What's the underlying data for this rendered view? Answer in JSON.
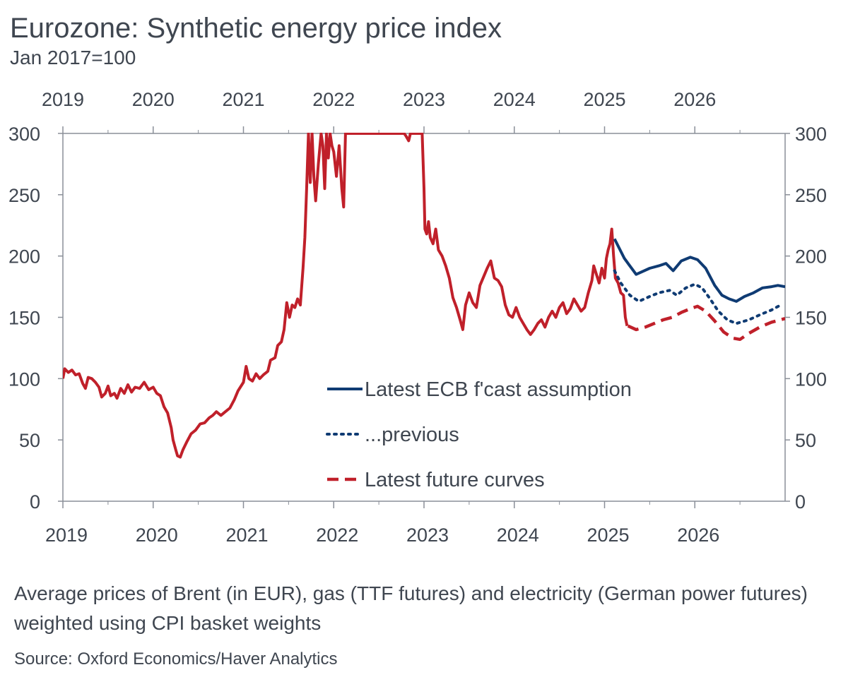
{
  "chart_data": {
    "type": "line",
    "title": "Eurozone: Synthetic energy price index",
    "subtitle": "Jan 2017=100",
    "x_tick_labels": [
      "2019",
      "2020",
      "2021",
      "2022",
      "2023",
      "2024",
      "2025",
      "2026"
    ],
    "x_range": [
      2019.0,
      2027.0
    ],
    "ylim": [
      0,
      300
    ],
    "y_ticks": [
      0,
      50,
      100,
      150,
      200,
      250,
      300
    ],
    "y_tick_labels": [
      "0",
      "50",
      "100",
      "150",
      "200",
      "250",
      "300"
    ],
    "legend": {
      "placement": "center-right",
      "entries": [
        "Latest ECB f'cast assumption",
        "...previous",
        "Latest future curves"
      ]
    },
    "colors": {
      "history": "#c0202a",
      "ecb_latest": "#0f3b73",
      "ecb_previous": "#0f3b73",
      "futures": "#c0202a",
      "axis": "#8a8f98"
    },
    "series": [
      {
        "name": "history",
        "style": "solid",
        "points": [
          [
            2019.0,
            100
          ],
          [
            2019.02,
            108
          ],
          [
            2019.06,
            105
          ],
          [
            2019.1,
            107
          ],
          [
            2019.14,
            103
          ],
          [
            2019.18,
            104
          ],
          [
            2019.22,
            96
          ],
          [
            2019.25,
            92
          ],
          [
            2019.28,
            101
          ],
          [
            2019.32,
            100
          ],
          [
            2019.36,
            97
          ],
          [
            2019.4,
            93
          ],
          [
            2019.43,
            85
          ],
          [
            2019.47,
            88
          ],
          [
            2019.5,
            94
          ],
          [
            2019.53,
            86
          ],
          [
            2019.57,
            88
          ],
          [
            2019.6,
            84
          ],
          [
            2019.64,
            92
          ],
          [
            2019.68,
            88
          ],
          [
            2019.72,
            95
          ],
          [
            2019.76,
            89
          ],
          [
            2019.8,
            93
          ],
          [
            2019.85,
            92
          ],
          [
            2019.9,
            97
          ],
          [
            2019.95,
            91
          ],
          [
            2020.0,
            93
          ],
          [
            2020.04,
            88
          ],
          [
            2020.08,
            86
          ],
          [
            2020.12,
            77
          ],
          [
            2020.16,
            72
          ],
          [
            2020.2,
            60
          ],
          [
            2020.22,
            50
          ],
          [
            2020.25,
            42
          ],
          [
            2020.27,
            37
          ],
          [
            2020.3,
            36
          ],
          [
            2020.33,
            42
          ],
          [
            2020.37,
            48
          ],
          [
            2020.42,
            55
          ],
          [
            2020.47,
            58
          ],
          [
            2020.52,
            63
          ],
          [
            2020.57,
            64
          ],
          [
            2020.62,
            68
          ],
          [
            2020.66,
            70
          ],
          [
            2020.7,
            73
          ],
          [
            2020.75,
            70
          ],
          [
            2020.8,
            73
          ],
          [
            2020.85,
            76
          ],
          [
            2020.9,
            83
          ],
          [
            2020.94,
            90
          ],
          [
            2021.0,
            97
          ],
          [
            2021.03,
            110
          ],
          [
            2021.06,
            100
          ],
          [
            2021.1,
            98
          ],
          [
            2021.14,
            104
          ],
          [
            2021.18,
            100
          ],
          [
            2021.22,
            103
          ],
          [
            2021.27,
            106
          ],
          [
            2021.3,
            115
          ],
          [
            2021.35,
            117
          ],
          [
            2021.38,
            127
          ],
          [
            2021.42,
            130
          ],
          [
            2021.45,
            140
          ],
          [
            2021.48,
            162
          ],
          [
            2021.51,
            150
          ],
          [
            2021.54,
            160
          ],
          [
            2021.57,
            158
          ],
          [
            2021.6,
            165
          ],
          [
            2021.63,
            160
          ],
          [
            2021.66,
            190
          ],
          [
            2021.68,
            215
          ],
          [
            2021.7,
            255
          ],
          [
            2021.72,
            300
          ],
          [
            2021.74,
            260
          ],
          [
            2021.76,
            300
          ],
          [
            2021.78,
            265
          ],
          [
            2021.8,
            245
          ],
          [
            2021.83,
            275
          ],
          [
            2021.86,
            300
          ],
          [
            2021.88,
            290
          ],
          [
            2021.9,
            255
          ],
          [
            2021.92,
            300
          ],
          [
            2021.94,
            280
          ],
          [
            2021.96,
            300
          ],
          [
            2021.98,
            290
          ],
          [
            2022.0,
            285
          ],
          [
            2022.03,
            265
          ],
          [
            2022.06,
            290
          ],
          [
            2022.09,
            255
          ],
          [
            2022.11,
            240
          ],
          [
            2022.13,
            300
          ],
          [
            2022.15,
            300
          ],
          [
            2022.78,
            300
          ],
          [
            2022.8,
            298
          ],
          [
            2022.83,
            294
          ],
          [
            2022.85,
            300
          ],
          [
            2022.88,
            300
          ],
          [
            2022.9,
            300
          ],
          [
            2022.93,
            300
          ],
          [
            2022.96,
            300
          ],
          [
            2022.98,
            300
          ],
          [
            2023.0,
            255
          ],
          [
            2023.01,
            222
          ],
          [
            2023.03,
            218
          ],
          [
            2023.05,
            228
          ],
          [
            2023.07,
            215
          ],
          [
            2023.1,
            210
          ],
          [
            2023.13,
            222
          ],
          [
            2023.16,
            205
          ],
          [
            2023.2,
            200
          ],
          [
            2023.24,
            192
          ],
          [
            2023.28,
            182
          ],
          [
            2023.32,
            166
          ],
          [
            2023.36,
            158
          ],
          [
            2023.4,
            148
          ],
          [
            2023.43,
            140
          ],
          [
            2023.46,
            160
          ],
          [
            2023.5,
            170
          ],
          [
            2023.54,
            162
          ],
          [
            2023.58,
            158
          ],
          [
            2023.62,
            176
          ],
          [
            2023.66,
            183
          ],
          [
            2023.7,
            190
          ],
          [
            2023.74,
            196
          ],
          [
            2023.78,
            182
          ],
          [
            2023.82,
            180
          ],
          [
            2023.86,
            175
          ],
          [
            2023.9,
            160
          ],
          [
            2023.94,
            152
          ],
          [
            2023.98,
            150
          ],
          [
            2024.02,
            158
          ],
          [
            2024.06,
            150
          ],
          [
            2024.1,
            145
          ],
          [
            2024.14,
            140
          ],
          [
            2024.18,
            136
          ],
          [
            2024.22,
            140
          ],
          [
            2024.26,
            145
          ],
          [
            2024.3,
            148
          ],
          [
            2024.34,
            142
          ],
          [
            2024.38,
            150
          ],
          [
            2024.42,
            155
          ],
          [
            2024.46,
            150
          ],
          [
            2024.5,
            158
          ],
          [
            2024.54,
            162
          ],
          [
            2024.58,
            153
          ],
          [
            2024.62,
            157
          ],
          [
            2024.66,
            165
          ],
          [
            2024.7,
            160
          ],
          [
            2024.74,
            155
          ],
          [
            2024.78,
            158
          ],
          [
            2024.82,
            170
          ],
          [
            2024.86,
            180
          ],
          [
            2024.88,
            192
          ],
          [
            2024.91,
            185
          ],
          [
            2024.94,
            178
          ],
          [
            2024.97,
            190
          ],
          [
            2025.0,
            182
          ],
          [
            2025.02,
            198
          ],
          [
            2025.04,
            205
          ],
          [
            2025.06,
            210
          ],
          [
            2025.08,
            222
          ],
          [
            2025.1,
            200
          ],
          [
            2025.12,
            182
          ],
          [
            2025.15,
            178
          ],
          [
            2025.18,
            170
          ],
          [
            2025.21,
            168
          ],
          [
            2025.23,
            150
          ],
          [
            2025.25,
            143
          ]
        ]
      },
      {
        "name": "Latest ECB f'cast assumption",
        "style": "solid",
        "points": [
          [
            2025.11,
            214
          ],
          [
            2025.22,
            198
          ],
          [
            2025.35,
            185
          ],
          [
            2025.5,
            190
          ],
          [
            2025.6,
            192
          ],
          [
            2025.68,
            194
          ],
          [
            2025.76,
            188
          ],
          [
            2025.85,
            196
          ],
          [
            2025.95,
            199
          ],
          [
            2026.03,
            197
          ],
          [
            2026.12,
            190
          ],
          [
            2026.22,
            176
          ],
          [
            2026.3,
            168
          ],
          [
            2026.38,
            165
          ],
          [
            2026.46,
            163
          ],
          [
            2026.55,
            167
          ],
          [
            2026.65,
            170
          ],
          [
            2026.75,
            174
          ],
          [
            2026.85,
            175
          ],
          [
            2026.92,
            176
          ],
          [
            2027.0,
            175
          ]
        ]
      },
      {
        "name": "...previous",
        "style": "dotted",
        "points": [
          [
            2025.11,
            188
          ],
          [
            2025.18,
            178
          ],
          [
            2025.28,
            168
          ],
          [
            2025.38,
            163
          ],
          [
            2025.5,
            167
          ],
          [
            2025.6,
            170
          ],
          [
            2025.72,
            172
          ],
          [
            2025.8,
            168
          ],
          [
            2025.9,
            174
          ],
          [
            2026.0,
            177
          ],
          [
            2026.08,
            174
          ],
          [
            2026.16,
            166
          ],
          [
            2026.26,
            155
          ],
          [
            2026.36,
            148
          ],
          [
            2026.46,
            145
          ],
          [
            2026.6,
            148
          ],
          [
            2026.72,
            152
          ],
          [
            2026.85,
            156
          ],
          [
            2026.95,
            160
          ]
        ]
      },
      {
        "name": "Latest future curves",
        "style": "dashed",
        "points": [
          [
            2025.26,
            143
          ],
          [
            2025.35,
            140
          ],
          [
            2025.45,
            142
          ],
          [
            2025.55,
            145
          ],
          [
            2025.65,
            148
          ],
          [
            2025.75,
            150
          ],
          [
            2025.85,
            154
          ],
          [
            2025.95,
            157
          ],
          [
            2026.03,
            159
          ],
          [
            2026.12,
            155
          ],
          [
            2026.22,
            147
          ],
          [
            2026.32,
            138
          ],
          [
            2026.42,
            133
          ],
          [
            2026.5,
            132
          ],
          [
            2026.6,
            137
          ],
          [
            2026.72,
            142
          ],
          [
            2026.85,
            146
          ],
          [
            2026.95,
            148
          ],
          [
            2027.0,
            149
          ]
        ]
      }
    ]
  },
  "note": "Average prices of Brent (in EUR), gas (TTF futures) and electricity (German power futures) weighted using CPI basket weights",
  "source": "Source: Oxford Economics/Haver Analytics"
}
